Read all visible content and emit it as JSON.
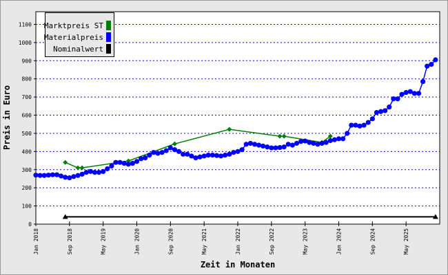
{
  "chart_data": {
    "type": "line",
    "xlabel": "Zeit in Monaten",
    "ylabel": "Preis in Euro",
    "xlim": [
      "2018-01",
      "2026-01"
    ],
    "xticks": [
      {
        "value": "2018-01",
        "label": "Jan 2018"
      },
      {
        "value": "2018-09",
        "label": "Sep 2018"
      },
      {
        "value": "2019-05",
        "label": "May 2019"
      },
      {
        "value": "2020-01",
        "label": "Jan 2020"
      },
      {
        "value": "2020-09",
        "label": "Sep 2020"
      },
      {
        "value": "2021-05",
        "label": "May 2021"
      },
      {
        "value": "2022-01",
        "label": "Jan 2022"
      },
      {
        "value": "2022-09",
        "label": "Sep 2022"
      },
      {
        "value": "2023-05",
        "label": "May 2023"
      },
      {
        "value": "2024-01",
        "label": "Jan 2024"
      },
      {
        "value": "2024-09",
        "label": "Sep 2024"
      },
      {
        "value": "2025-05",
        "label": "May 2025"
      }
    ],
    "ylim": [
      0,
      1170
    ],
    "yticks": [
      0,
      100,
      200,
      300,
      400,
      500,
      600,
      700,
      800,
      900,
      1000,
      1100
    ],
    "grid": true,
    "legend": "upper left",
    "series": [
      {
        "name": "Marktpreis ST",
        "color": "#008000",
        "marker": "diamond",
        "x": [
          "2018-08",
          "2018-11",
          "2018-12",
          "2019-11",
          "2020-10",
          "2021-11",
          "2022-11",
          "2022-12",
          "2023-09",
          "2023-11"
        ],
        "values": [
          340,
          310,
          310,
          348,
          442,
          522,
          484,
          484,
          450,
          484
        ]
      },
      {
        "name": "Materialpreis",
        "color": "#0000ff",
        "marker": "circle",
        "x": [
          "2018-01",
          "2018-02",
          "2018-03",
          "2018-04",
          "2018-05",
          "2018-06",
          "2018-07",
          "2018-08",
          "2018-09",
          "2018-10",
          "2018-11",
          "2018-12",
          "2019-01",
          "2019-02",
          "2019-03",
          "2019-04",
          "2019-05",
          "2019-06",
          "2019-07",
          "2019-08",
          "2019-09",
          "2019-10",
          "2019-11",
          "2019-12",
          "2020-01",
          "2020-02",
          "2020-03",
          "2020-04",
          "2020-05",
          "2020-06",
          "2020-07",
          "2020-08",
          "2020-09",
          "2020-10",
          "2020-11",
          "2020-12",
          "2021-01",
          "2021-02",
          "2021-03",
          "2021-04",
          "2021-05",
          "2021-06",
          "2021-07",
          "2021-08",
          "2021-09",
          "2021-10",
          "2021-11",
          "2021-12",
          "2022-01",
          "2022-02",
          "2022-03",
          "2022-04",
          "2022-05",
          "2022-06",
          "2022-07",
          "2022-08",
          "2022-09",
          "2022-10",
          "2022-11",
          "2022-12",
          "2023-01",
          "2023-02",
          "2023-03",
          "2023-04",
          "2023-05",
          "2023-06",
          "2023-07",
          "2023-08",
          "2023-09",
          "2023-10",
          "2023-11",
          "2023-12",
          "2024-01",
          "2024-02",
          "2024-03",
          "2024-04",
          "2024-05",
          "2024-06",
          "2024-07",
          "2024-08",
          "2024-09",
          "2024-10",
          "2024-11",
          "2024-12",
          "2025-01",
          "2025-02",
          "2025-03",
          "2025-04",
          "2025-05",
          "2025-06",
          "2025-07",
          "2025-08",
          "2025-09",
          "2025-10",
          "2025-11",
          "2025-12"
        ],
        "values": [
          270,
          268,
          268,
          270,
          272,
          272,
          265,
          258,
          255,
          262,
          268,
          275,
          285,
          290,
          285,
          285,
          290,
          305,
          320,
          340,
          340,
          335,
          330,
          335,
          345,
          360,
          365,
          380,
          395,
          390,
          395,
          405,
          420,
          410,
          400,
          385,
          385,
          375,
          365,
          370,
          375,
          380,
          380,
          378,
          375,
          380,
          385,
          395,
          400,
          410,
          440,
          445,
          440,
          435,
          430,
          425,
          420,
          420,
          422,
          425,
          440,
          435,
          445,
          455,
          458,
          450,
          445,
          440,
          445,
          450,
          460,
          465,
          470,
          470,
          500,
          545,
          545,
          540,
          545,
          560,
          580,
          615,
          620,
          625,
          645,
          690,
          690,
          715,
          725,
          730,
          720,
          720,
          785,
          870,
          880,
          905
        ]
      },
      {
        "name": "Nominalwert",
        "color": "#000000",
        "marker": "triangle",
        "x": [
          "2018-08",
          "2025-12"
        ],
        "values": [
          40,
          40
        ]
      }
    ]
  }
}
